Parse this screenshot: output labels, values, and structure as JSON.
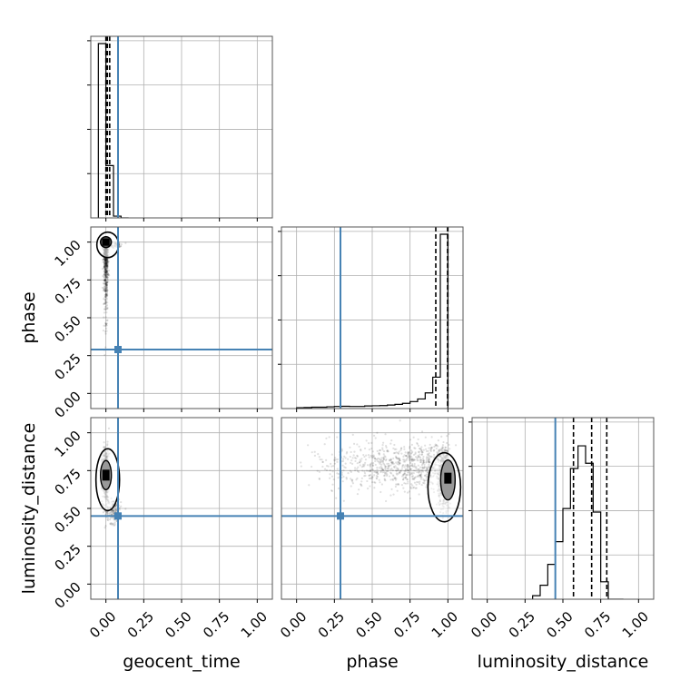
{
  "chart_data": {
    "type": "corner",
    "params": [
      "geocent_time",
      "phase",
      "luminosity_distance"
    ],
    "axis_labels": {
      "x": [
        "geocent_time",
        "phase",
        "luminosity_distance"
      ],
      "y": [
        "phase",
        "luminosity_distance"
      ]
    },
    "range": [
      0.0,
      1.0
    ],
    "ticks": [
      0.0,
      0.25,
      0.5,
      0.75,
      1.0
    ],
    "tick_labels": [
      "0.00",
      "0.25",
      "0.50",
      "0.75",
      "1.00"
    ],
    "grid": true,
    "truths": {
      "geocent_time": 0.08,
      "phase": 0.29,
      "luminosity_distance": 0.45
    },
    "truth_color": "#4682b4",
    "histograms": {
      "geocent_time": {
        "edges": [
          -0.05,
          0.0,
          0.05,
          0.1,
          0.15
        ],
        "counts": [
          1.0,
          0.3,
          0.01,
          0.0
        ],
        "quantiles": [
          0.0,
          0.01,
          0.025
        ]
      },
      "phase": {
        "edges": [
          0.0,
          0.05,
          0.1,
          0.15,
          0.2,
          0.25,
          0.3,
          0.35,
          0.4,
          0.45,
          0.5,
          0.55,
          0.6,
          0.65,
          0.7,
          0.75,
          0.8,
          0.85,
          0.9,
          0.95,
          1.0
        ],
        "counts": [
          0.005,
          0.006,
          0.008,
          0.008,
          0.01,
          0.012,
          0.013,
          0.012,
          0.012,
          0.015,
          0.016,
          0.017,
          0.02,
          0.024,
          0.03,
          0.04,
          0.055,
          0.09,
          0.18,
          1.0
        ],
        "quantiles": [
          0.92,
          0.998,
          1.0
        ]
      },
      "luminosity_distance": {
        "edges": [
          0.3,
          0.35,
          0.4,
          0.45,
          0.5,
          0.55,
          0.6,
          0.65,
          0.7,
          0.75,
          0.8,
          0.85,
          0.9
        ],
        "counts": [
          0.02,
          0.08,
          0.2,
          0.33,
          0.52,
          0.75,
          0.88,
          0.78,
          0.5,
          0.1,
          0.0,
          0.0
        ],
        "quantiles": [
          0.57,
          0.69,
          0.79
        ]
      }
    },
    "contours_2d": {
      "phase_vs_geocent_time": {
        "mode": [
          0.0,
          1.0
        ]
      },
      "luminosity_distance_vs_geocent_time": {
        "mode": [
          0.0,
          0.72
        ]
      },
      "luminosity_distance_vs_phase": {
        "mode": [
          1.0,
          0.7
        ]
      }
    }
  }
}
